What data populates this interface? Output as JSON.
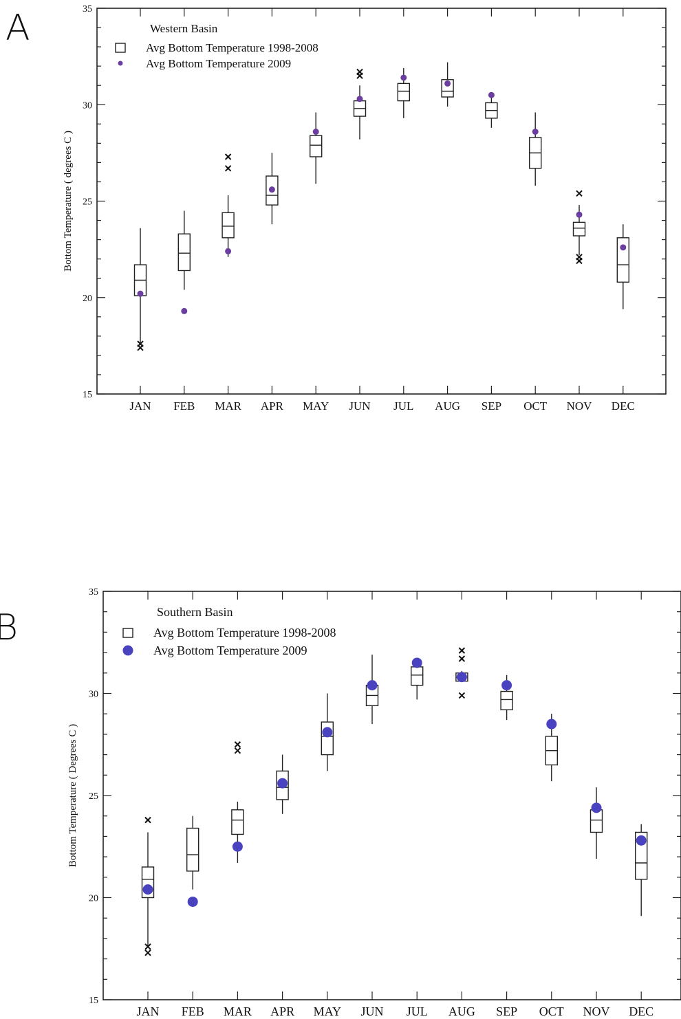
{
  "chart_data": [
    {
      "type": "box",
      "panel_label": "A",
      "title": "Western Basin",
      "xlabel": "",
      "ylabel": "Bottom Temperature ( degrees C )",
      "ylim": [
        15,
        35
      ],
      "yticks": [
        15,
        20,
        25,
        30,
        35
      ],
      "categories": [
        "JAN",
        "FEB",
        "MAR",
        "APR",
        "MAY",
        "JUN",
        "JUL",
        "AUG",
        "SEP",
        "OCT",
        "NOV",
        "DEC"
      ],
      "legend": {
        "placement": "top-left",
        "entries": [
          "Avg Bottom Temperature 1998-2008",
          "Avg Bottom Temperature 2009"
        ]
      },
      "point_color": "#6a3fa0",
      "boxes": [
        {
          "min": 17.6,
          "q1": 20.1,
          "median": 20.9,
          "q3": 21.7,
          "max": 23.6,
          "outliers": [
            17.4,
            17.6
          ]
        },
        {
          "min": 20.4,
          "q1": 21.4,
          "median": 22.3,
          "q3": 23.3,
          "max": 24.5,
          "outliers": []
        },
        {
          "min": 22.1,
          "q1": 23.1,
          "median": 23.7,
          "q3": 24.4,
          "max": 25.3,
          "outliers": [
            26.7,
            27.3
          ]
        },
        {
          "min": 23.8,
          "q1": 24.8,
          "median": 25.3,
          "q3": 26.3,
          "max": 27.5,
          "outliers": []
        },
        {
          "min": 25.9,
          "q1": 27.3,
          "median": 27.9,
          "q3": 28.4,
          "max": 29.6,
          "outliers": []
        },
        {
          "min": 28.2,
          "q1": 29.4,
          "median": 29.8,
          "q3": 30.2,
          "max": 31.0,
          "outliers": [
            31.5,
            31.7
          ]
        },
        {
          "min": 29.3,
          "q1": 30.2,
          "median": 30.7,
          "q3": 31.1,
          "max": 31.9,
          "outliers": []
        },
        {
          "min": 29.9,
          "q1": 30.4,
          "median": 30.7,
          "q3": 31.3,
          "max": 32.2,
          "outliers": []
        },
        {
          "min": 28.8,
          "q1": 29.3,
          "median": 29.7,
          "q3": 30.1,
          "max": 30.6,
          "outliers": []
        },
        {
          "min": 25.8,
          "q1": 26.7,
          "median": 27.5,
          "q3": 28.3,
          "max": 29.6,
          "outliers": []
        },
        {
          "min": 22.2,
          "q1": 23.2,
          "median": 23.6,
          "q3": 23.9,
          "max": 24.8,
          "outliers": [
            25.4,
            21.9,
            22.1
          ]
        },
        {
          "min": 19.4,
          "q1": 20.8,
          "median": 21.7,
          "q3": 23.1,
          "max": 23.8,
          "outliers": []
        }
      ],
      "series": [
        {
          "name": "Avg Bottom Temperature 2009",
          "values": [
            20.2,
            19.3,
            22.4,
            25.6,
            28.6,
            30.3,
            31.4,
            31.1,
            30.5,
            28.6,
            24.3,
            22.6
          ]
        }
      ]
    },
    {
      "type": "box",
      "panel_label": "B",
      "title": "Southern Basin",
      "xlabel": "",
      "ylabel": "Bottom Temperature ( Degrees C )",
      "ylim": [
        15,
        35
      ],
      "yticks": [
        15,
        20,
        25,
        30,
        35
      ],
      "categories": [
        "JAN",
        "FEB",
        "MAR",
        "APR",
        "MAY",
        "JUN",
        "JUL",
        "AUG",
        "SEP",
        "OCT",
        "NOV",
        "DEC"
      ],
      "legend": {
        "placement": "top-left",
        "entries": [
          "Avg Bottom Temperature 1998-2008",
          "Avg Bottom Temperature 2009"
        ]
      },
      "point_color": "#4a43c0",
      "boxes": [
        {
          "min": 17.6,
          "q1": 20.0,
          "median": 20.9,
          "q3": 21.5,
          "max": 23.2,
          "outliers": [
            23.8,
            17.6,
            17.3
          ]
        },
        {
          "min": 20.4,
          "q1": 21.3,
          "median": 22.1,
          "q3": 23.4,
          "max": 24.0,
          "outliers": []
        },
        {
          "min": 21.7,
          "q1": 23.1,
          "median": 23.8,
          "q3": 24.3,
          "max": 24.7,
          "outliers": [
            27.5,
            27.2
          ]
        },
        {
          "min": 24.1,
          "q1": 24.8,
          "median": 25.4,
          "q3": 26.2,
          "max": 27.0,
          "outliers": []
        },
        {
          "min": 26.2,
          "q1": 27.0,
          "median": 27.9,
          "q3": 28.6,
          "max": 30.0,
          "outliers": []
        },
        {
          "min": 28.5,
          "q1": 29.4,
          "median": 29.9,
          "q3": 30.4,
          "max": 31.9,
          "outliers": []
        },
        {
          "min": 29.7,
          "q1": 30.4,
          "median": 30.9,
          "q3": 31.3,
          "max": 31.7,
          "outliers": []
        },
        {
          "min": 30.6,
          "q1": 30.6,
          "median": 30.8,
          "q3": 31.0,
          "max": 31.1,
          "outliers": [
            32.1,
            31.7,
            29.9
          ]
        },
        {
          "min": 28.7,
          "q1": 29.2,
          "median": 29.7,
          "q3": 30.1,
          "max": 30.9,
          "outliers": []
        },
        {
          "min": 25.7,
          "q1": 26.5,
          "median": 27.2,
          "q3": 27.9,
          "max": 29.0,
          "outliers": []
        },
        {
          "min": 21.9,
          "q1": 23.2,
          "median": 23.8,
          "q3": 24.3,
          "max": 25.4,
          "outliers": []
        },
        {
          "min": 19.1,
          "q1": 20.9,
          "median": 21.7,
          "q3": 23.2,
          "max": 23.6,
          "outliers": []
        }
      ],
      "series": [
        {
          "name": "Avg Bottom Temperature 2009",
          "values": [
            20.4,
            19.8,
            22.5,
            25.6,
            28.1,
            30.4,
            31.5,
            30.8,
            30.4,
            28.5,
            24.4,
            22.8
          ]
        }
      ]
    }
  ]
}
